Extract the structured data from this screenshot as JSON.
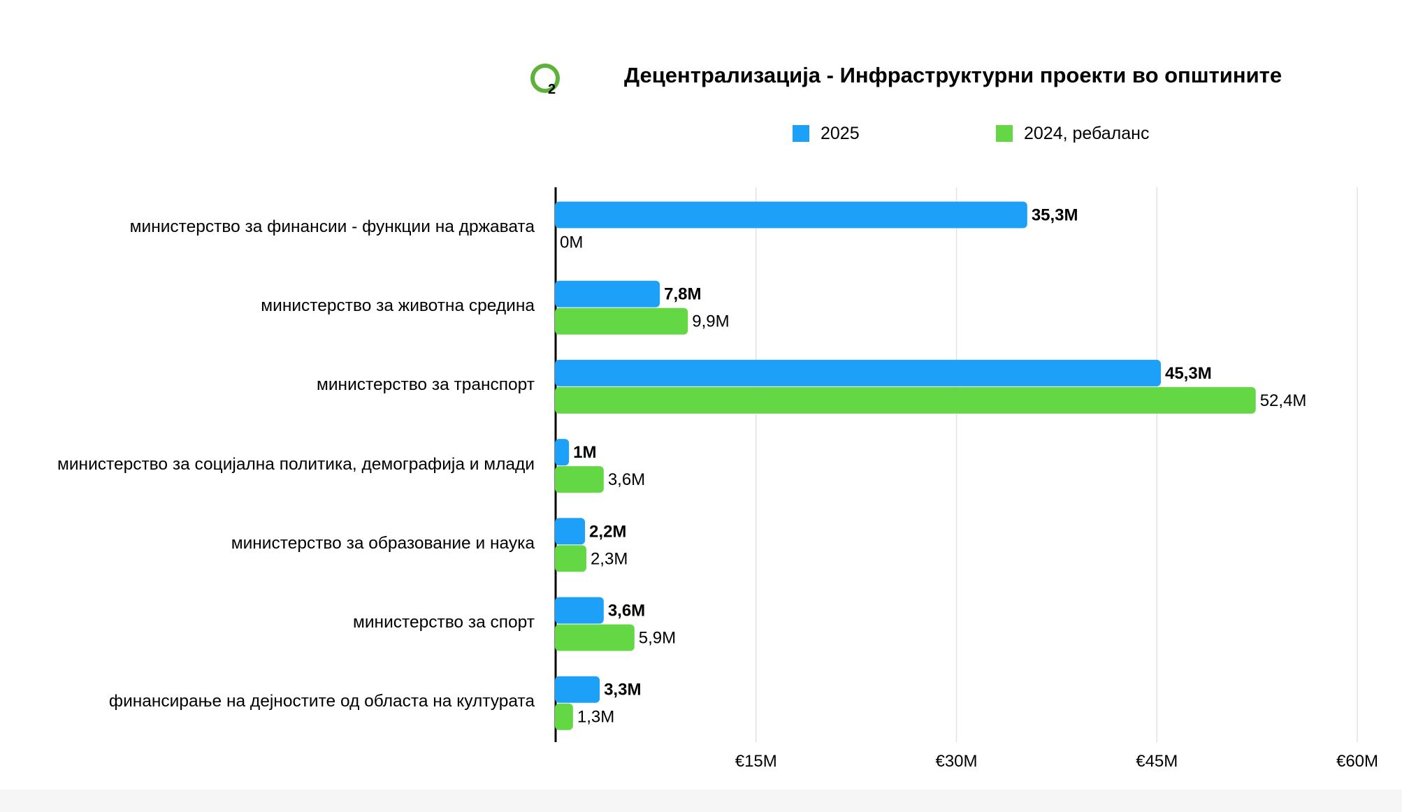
{
  "chart_data": {
    "type": "bar",
    "orientation": "horizontal",
    "title": "Децентрализација - Инфраструктурни проекти во општините",
    "categories": [
      "министерство за финансии - функции на државата",
      "министерство за животна средина",
      "министерство за транспорт",
      "министерство за социјална политика, демографија и млади",
      "министерство за образование и наука",
      "министерство за спорт",
      "финансирање на дејностите од областа на културата"
    ],
    "series": [
      {
        "name": "2025",
        "color": "#1DA1F8",
        "values": [
          35.3,
          7.8,
          45.3,
          1,
          2.2,
          3.6,
          3.3
        ],
        "labels": [
          "35,3M",
          "7,8M",
          "45,3M",
          "1M",
          "2,2M",
          "3,6M",
          "3,3M"
        ]
      },
      {
        "name": "2024, ребаланс",
        "color": "#63D844",
        "values": [
          0,
          9.9,
          52.4,
          3.6,
          2.3,
          5.9,
          1.3
        ],
        "labels": [
          "0M",
          "9,9M",
          "52,4M",
          "3,6M",
          "2,3M",
          "5,9M",
          "1,3M"
        ]
      }
    ],
    "xlim": [
      0,
      60
    ],
    "xticks": [
      15,
      30,
      45,
      60
    ],
    "xtick_labels": [
      "€15M",
      "€30M",
      "€45M",
      "€60M"
    ],
    "grid": true,
    "legend_position": "top"
  },
  "logo": {
    "text": "2",
    "color": "#5DB33A"
  }
}
